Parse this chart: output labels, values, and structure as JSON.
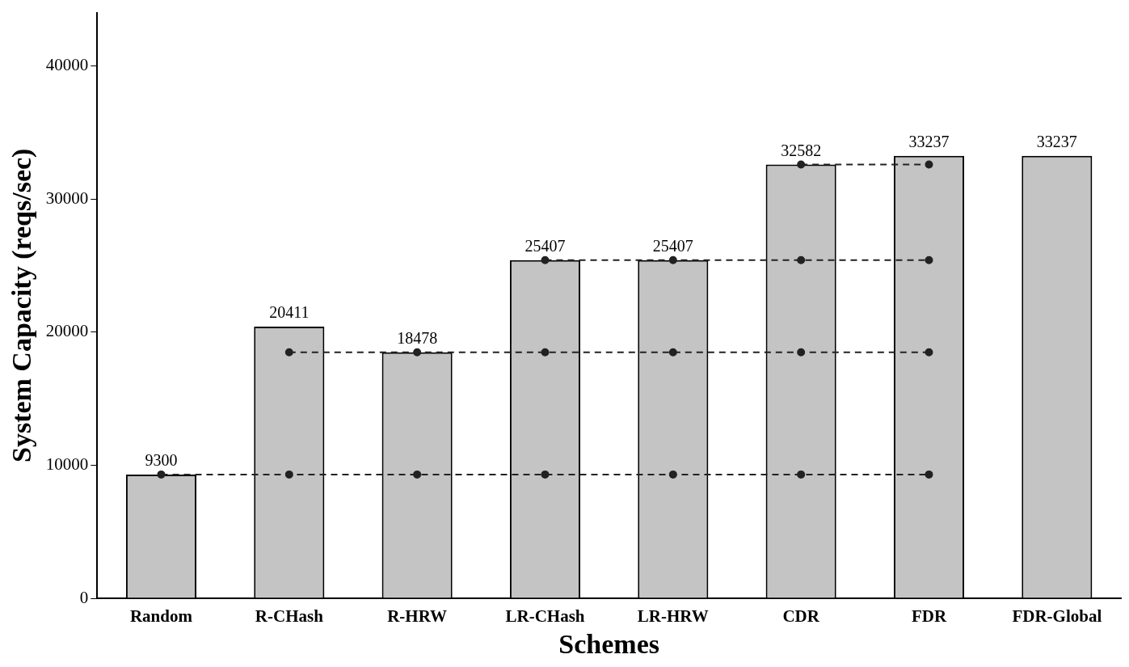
{
  "chart_data": {
    "type": "bar",
    "xlabel": "Schemes",
    "ylabel": "System Capacity (reqs/sec)",
    "categories": [
      "Random",
      "R-CHash",
      "R-HRW",
      "LR-CHash",
      "LR-HRW",
      "CDR",
      "FDR",
      "FDR-Global"
    ],
    "series": [
      {
        "color": "#c4c4c4",
        "values": [
          9300,
          20411,
          18478,
          25407,
          25407,
          32582,
          33237,
          33237
        ],
        "value_labels": [
          "9300",
          "20411",
          "18478",
          "25407",
          "25407",
          "32582",
          "33237",
          "33237"
        ]
      },
      {
        "type": "line",
        "color": "#222222",
        "values": [
          9300,
          9300,
          9300,
          9300,
          9300,
          9300,
          9300,
          null
        ]
      },
      {
        "type": "line",
        "color": "#222222",
        "values": [
          null,
          18478,
          18478,
          18478,
          18478,
          18478,
          18478,
          null
        ]
      },
      {
        "type": "line",
        "color": "#222222",
        "values": [
          null,
          null,
          null,
          25407,
          25407,
          25407,
          25407,
          null
        ]
      },
      {
        "type": "line",
        "color": "#222222",
        "values": [
          null,
          null,
          null,
          null,
          null,
          32582,
          32582,
          null
        ]
      }
    ],
    "ylim": [
      0,
      44000
    ],
    "yticks": [
      0,
      10000,
      20000,
      30000,
      40000
    ],
    "grid": false,
    "legend": false,
    "marker": "circle",
    "line_style": "dashed"
  }
}
